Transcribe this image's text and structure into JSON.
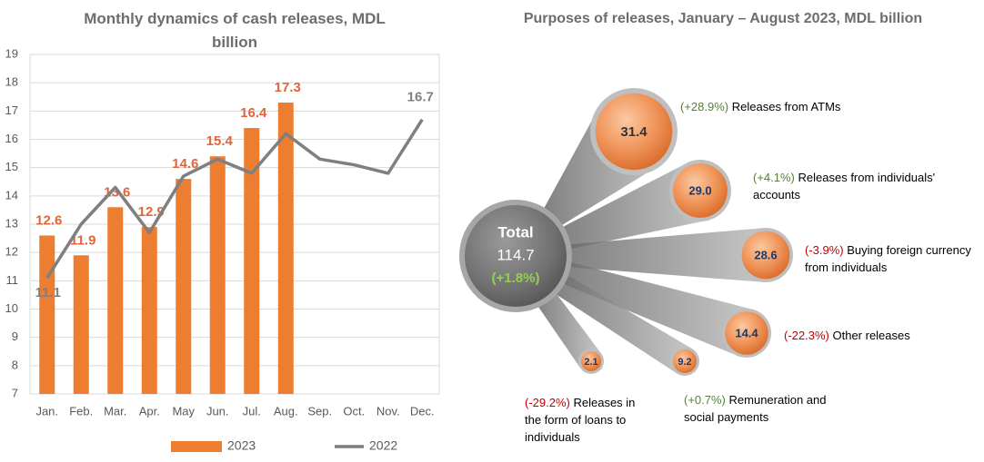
{
  "chart_data": [
    {
      "type": "bar",
      "title": "Monthly dynamics of cash releases, MDL billion",
      "categories": [
        "Jan.",
        "Feb.",
        "Mar.",
        "Apr.",
        "May",
        "Jun.",
        "Jul.",
        "Aug.",
        "Sep.",
        "Oct.",
        "Nov.",
        "Dec."
      ],
      "series": [
        {
          "name": "2023",
          "color": "#ed7d31",
          "values": [
            12.6,
            11.9,
            13.6,
            12.9,
            14.6,
            15.4,
            16.4,
            17.3,
            null,
            null,
            null,
            null
          ]
        },
        {
          "name": "2022",
          "type": "line",
          "color": "#7f7f7f",
          "values": [
            11.1,
            13.0,
            14.3,
            12.7,
            14.7,
            15.3,
            14.8,
            16.2,
            15.3,
            15.1,
            14.8,
            16.7
          ],
          "value_labels": [
            "11.1",
            null,
            null,
            null,
            null,
            null,
            null,
            null,
            null,
            null,
            null,
            "16.7"
          ]
        }
      ],
      "ylim": [
        7,
        19
      ],
      "yticks": [
        7,
        8,
        9,
        10,
        11,
        12,
        13,
        14,
        15,
        16,
        17,
        18,
        19
      ],
      "grid": true,
      "legend": "bottom"
    },
    {
      "type": "bubble",
      "title": "Purposes of releases, January – August 2023, MDL billion",
      "total": {
        "label": "Total",
        "value": 114.7,
        "change": "(+1.8%)",
        "change_color": "#92d050"
      },
      "items": [
        {
          "value": 31.4,
          "change": "(+28.9%)",
          "change_color": "#548235",
          "label": "Releases from ATMs"
        },
        {
          "value": 29.0,
          "value_label": "29.0",
          "change": "(+4.1%)",
          "change_color": "#548235",
          "label": "Releases from individuals' accounts"
        },
        {
          "value": 28.6,
          "change": "(-3.9%)",
          "change_color": "#c00000",
          "label": "Buying foreign currency from individuals"
        },
        {
          "value": 14.4,
          "change": "(-22.3%)",
          "change_color": "#c00000",
          "label": "Other releases"
        },
        {
          "value": 9.2,
          "change": "(+0.7%)",
          "change_color": "#548235",
          "label": "Remuneration and social payments"
        },
        {
          "value": 2.1,
          "change": "(-29.2%)",
          "change_color": "#c00000",
          "label": "Releases in the form of loans to individuals"
        }
      ]
    }
  ]
}
